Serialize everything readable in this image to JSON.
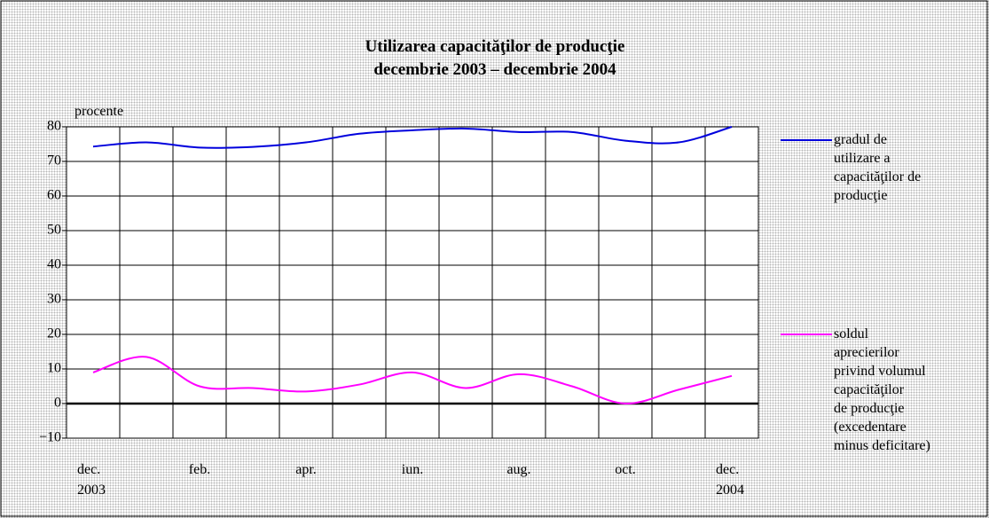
{
  "chart_data": {
    "type": "line",
    "title": "Utilizarea capacităţilor de producţie\ndecembrie 2003 – decembrie 2004",
    "y_label": "procente",
    "categories": [
      "dec.\n2003",
      null,
      "feb.",
      null,
      "apr.",
      null,
      "iun.",
      null,
      "aug.",
      null,
      "oct.",
      null,
      "dec.\n2004"
    ],
    "series": [
      {
        "name": "gradul de\nutilizare a\ncapacităţilor de\nproducţie",
        "color": "#0000dd",
        "values": [
          74.3,
          75.5,
          74,
          74.2,
          75.5,
          78,
          79,
          79.5,
          78.5,
          78.5,
          76,
          75.5,
          80
        ]
      },
      {
        "name": "soldul\naprecierilor\nprivind volumul\ncapacităţilor\nde producţie\n(excedentare\nminus deficitare)",
        "color": "#ff00ff",
        "values": [
          9,
          13.5,
          5,
          4.5,
          3.5,
          5.5,
          9,
          4.5,
          8.5,
          5,
          0,
          4,
          8
        ]
      }
    ],
    "ylim": [
      -10,
      80
    ],
    "yticks": [
      {
        "value": -10,
        "label": "−10"
      },
      0,
      10,
      20,
      30,
      40,
      50,
      60,
      70,
      80
    ],
    "grid": true,
    "legend": "right"
  }
}
